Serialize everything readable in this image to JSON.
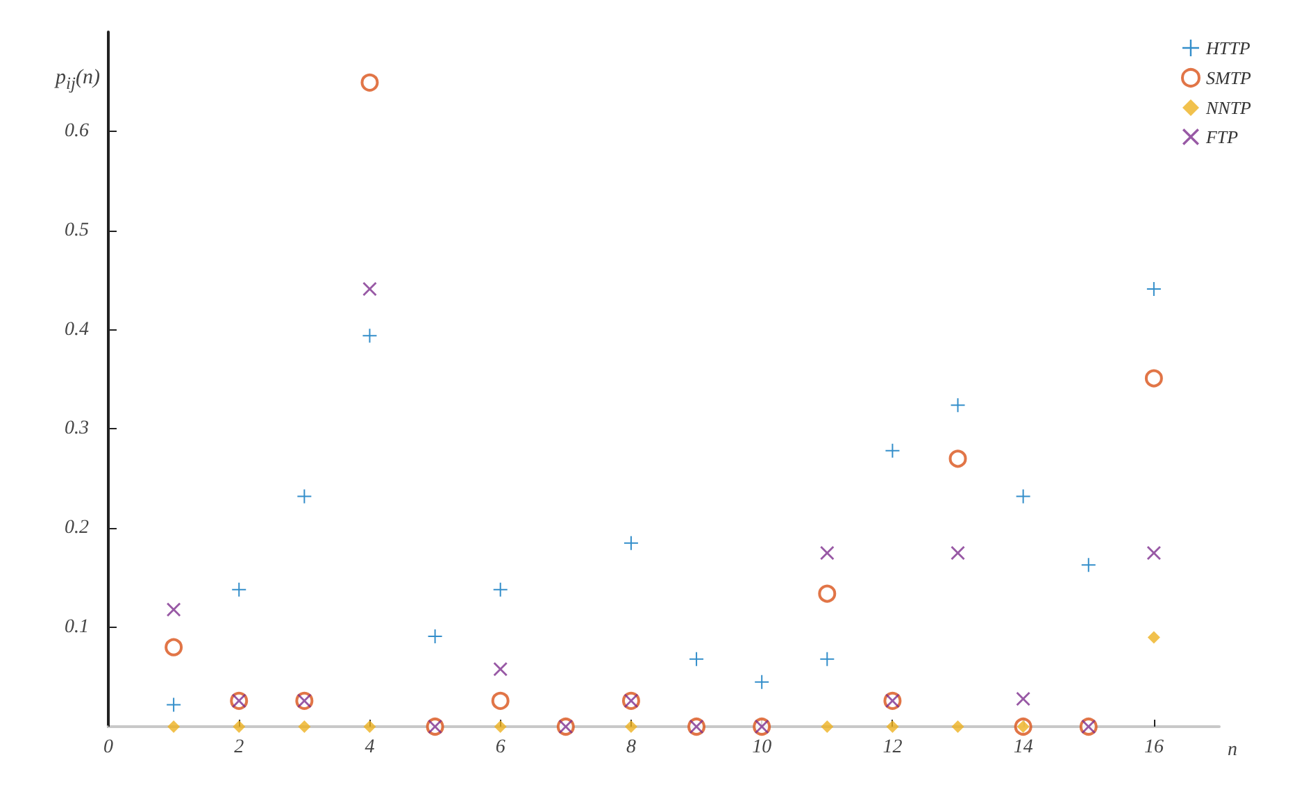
{
  "chart_data": {
    "type": "scatter",
    "xlabel": "n",
    "ylabel": "p$_{ij}$(n)",
    "x": [
      1,
      2,
      3,
      4,
      5,
      6,
      7,
      8,
      9,
      10,
      11,
      12,
      13,
      14,
      15,
      16
    ],
    "xlim": [
      0,
      17
    ],
    "xticks": [
      0,
      2,
      4,
      6,
      8,
      10,
      12,
      14,
      16
    ],
    "ylim": [
      0,
      0.7
    ],
    "yticks": [
      0.1,
      0.2,
      0.3,
      0.4,
      0.5,
      0.6
    ],
    "legend": "top right",
    "grid": false,
    "series": [
      {
        "name": "HTTP",
        "color": "#0072bd",
        "marker": "cross",
        "values": [
          0.022,
          0.138,
          0.232,
          0.394,
          0.091,
          0.138,
          null,
          0.185,
          0.068,
          0.045,
          0.068,
          0.278,
          0.324,
          0.232,
          0.163,
          0.441
        ]
      },
      {
        "name": "SMTP",
        "color": "#d95319",
        "marker": "circle",
        "values": [
          0.08,
          0.026,
          0.026,
          0.649,
          0,
          0.026,
          0,
          0.026,
          0,
          0,
          0.134,
          0.026,
          0.27,
          0,
          0,
          0.351
        ]
      },
      {
        "name": "NNTP",
        "color": "#edb120",
        "marker": "diamond",
        "values": [
          0,
          0,
          0,
          0,
          null,
          0,
          null,
          0,
          null,
          null,
          0,
          0,
          0,
          0,
          null,
          0.09
        ]
      },
      {
        "name": "FTP",
        "color": "#7e2f8e",
        "marker": "x",
        "values": [
          0.118,
          0.026,
          0.026,
          0.441,
          0,
          0.058,
          0,
          0.026,
          0,
          0,
          0.175,
          0.026,
          0.175,
          0.028,
          0,
          0.175
        ]
      }
    ]
  }
}
